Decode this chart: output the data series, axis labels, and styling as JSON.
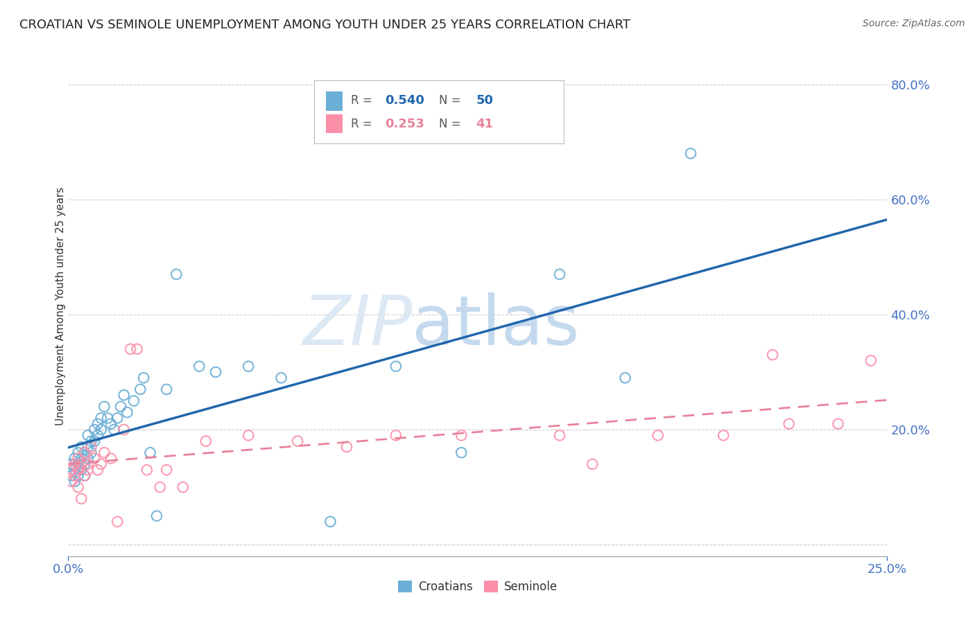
{
  "title": "CROATIAN VS SEMINOLE UNEMPLOYMENT AMONG YOUTH UNDER 25 YEARS CORRELATION CHART",
  "source": "Source: ZipAtlas.com",
  "ylabel": "Unemployment Among Youth under 25 years",
  "xlim": [
    0.0,
    0.25
  ],
  "ylim": [
    -0.02,
    0.85
  ],
  "yticks": [
    0.0,
    0.2,
    0.4,
    0.6,
    0.8
  ],
  "ytick_labels": [
    "",
    "20.0%",
    "40.0%",
    "60.0%",
    "80.0%"
  ],
  "xticks": [
    0.0,
    0.25
  ],
  "xtick_labels": [
    "0.0%",
    "25.0%"
  ],
  "croatian_R": 0.54,
  "croatian_N": 50,
  "seminole_R": 0.253,
  "seminole_N": 41,
  "croatian_color": "#6baed6",
  "seminole_color": "#fc8fa8",
  "croatian_line_color": "#2166ac",
  "seminole_line_color": "#e8829a",
  "background_color": "#ffffff",
  "grid_color": "#c8c8c8",
  "croatian_x": [
    0.001,
    0.001,
    0.002,
    0.002,
    0.002,
    0.003,
    0.003,
    0.003,
    0.004,
    0.004,
    0.004,
    0.005,
    0.005,
    0.005,
    0.006,
    0.006,
    0.006,
    0.007,
    0.007,
    0.008,
    0.008,
    0.009,
    0.009,
    0.01,
    0.01,
    0.011,
    0.012,
    0.013,
    0.014,
    0.015,
    0.016,
    0.017,
    0.018,
    0.02,
    0.022,
    0.023,
    0.025,
    0.027,
    0.03,
    0.033,
    0.04,
    0.045,
    0.055,
    0.065,
    0.08,
    0.1,
    0.12,
    0.15,
    0.17,
    0.19
  ],
  "croatian_y": [
    0.14,
    0.12,
    0.13,
    0.15,
    0.11,
    0.12,
    0.14,
    0.16,
    0.13,
    0.15,
    0.17,
    0.14,
    0.16,
    0.12,
    0.15,
    0.17,
    0.19,
    0.16,
    0.18,
    0.18,
    0.2,
    0.19,
    0.21,
    0.2,
    0.22,
    0.24,
    0.22,
    0.21,
    0.2,
    0.22,
    0.24,
    0.26,
    0.23,
    0.25,
    0.27,
    0.29,
    0.16,
    0.05,
    0.27,
    0.47,
    0.31,
    0.3,
    0.31,
    0.29,
    0.04,
    0.31,
    0.16,
    0.47,
    0.29,
    0.68
  ],
  "seminole_x": [
    0.001,
    0.001,
    0.002,
    0.002,
    0.003,
    0.003,
    0.003,
    0.004,
    0.004,
    0.005,
    0.005,
    0.006,
    0.006,
    0.007,
    0.008,
    0.009,
    0.01,
    0.011,
    0.013,
    0.015,
    0.017,
    0.019,
    0.021,
    0.024,
    0.028,
    0.03,
    0.035,
    0.042,
    0.055,
    0.07,
    0.085,
    0.1,
    0.12,
    0.15,
    0.16,
    0.18,
    0.2,
    0.215,
    0.22,
    0.235,
    0.245
  ],
  "seminole_y": [
    0.13,
    0.11,
    0.14,
    0.12,
    0.13,
    0.15,
    0.1,
    0.14,
    0.08,
    0.12,
    0.16,
    0.14,
    0.13,
    0.17,
    0.15,
    0.13,
    0.14,
    0.16,
    0.15,
    0.04,
    0.2,
    0.34,
    0.34,
    0.13,
    0.1,
    0.13,
    0.1,
    0.18,
    0.19,
    0.18,
    0.17,
    0.19,
    0.19,
    0.19,
    0.14,
    0.19,
    0.19,
    0.33,
    0.21,
    0.21,
    0.32
  ]
}
